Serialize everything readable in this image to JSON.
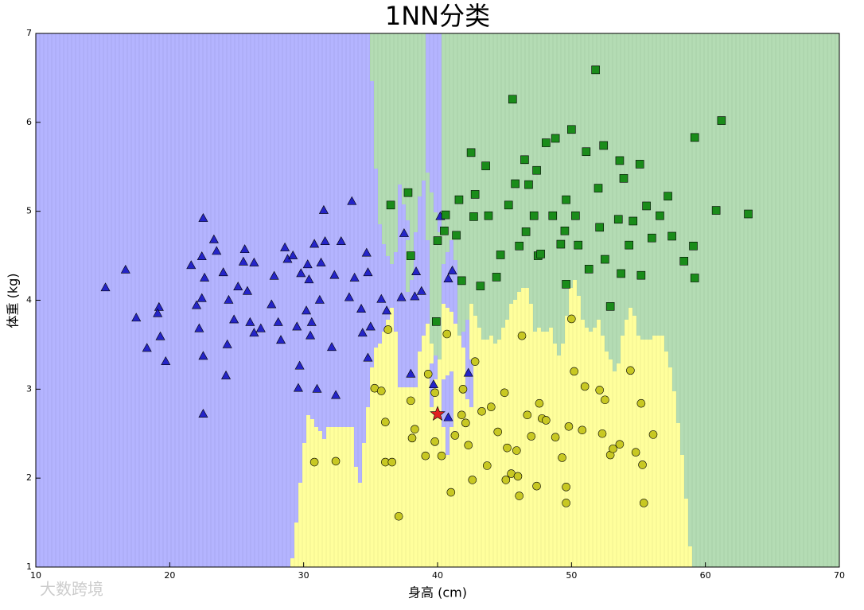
{
  "chart_data": {
    "type": "scatter",
    "title": "1NN分类",
    "xlabel": "身高 (cm)",
    "ylabel": "体重 (kg)",
    "watermark": "大数跨境",
    "xlim": [
      10,
      70
    ],
    "ylim": [
      1,
      7
    ],
    "xticks": [
      10,
      20,
      30,
      40,
      50,
      60,
      70
    ],
    "yticks": [
      1,
      2,
      3,
      4,
      5,
      6,
      7
    ],
    "series": [
      {
        "color": "#2424c8",
        "region_color": "#b4b4ff",
        "marker": "triangle",
        "x": [
          15.2,
          16.7,
          17.5,
          18.3,
          19.2,
          19.1,
          19.3,
          19.7,
          21.6,
          22.0,
          22.2,
          22.4,
          22.5,
          22.6,
          22.5,
          22.5,
          22.4,
          23.3,
          23.5,
          24.0,
          24.2,
          24.3,
          24.4,
          24.8,
          25.1,
          25.5,
          25.6,
          25.8,
          26.0,
          26.3,
          26.3,
          26.8,
          27.6,
          27.8,
          28.1,
          28.3,
          28.6,
          28.8,
          29.2,
          29.5,
          29.6,
          29.7,
          29.8,
          30.2,
          30.4,
          30.3,
          30.5,
          30.6,
          30.8,
          31.0,
          31.2,
          31.3,
          31.5,
          31.6,
          32.1,
          32.3,
          32.4,
          32.8,
          33.4,
          33.6,
          33.8,
          34.3,
          34.4,
          34.7,
          34.8,
          34.8,
          35.0,
          35.8,
          36.2,
          37.3,
          37.5,
          38.0,
          38.3,
          38.4,
          38.8,
          39.7,
          40.2,
          40.8,
          41.1,
          42.3,
          40.8
        ],
        "y": [
          4.14,
          4.34,
          3.8,
          3.46,
          3.92,
          3.85,
          3.59,
          3.31,
          4.39,
          3.94,
          3.68,
          4.49,
          4.92,
          4.25,
          2.72,
          3.37,
          4.02,
          4.68,
          4.55,
          4.31,
          3.15,
          3.5,
          4.0,
          3.78,
          4.15,
          4.43,
          4.57,
          4.1,
          3.75,
          4.42,
          3.63,
          3.68,
          3.95,
          4.27,
          3.75,
          3.55,
          4.59,
          4.46,
          4.5,
          3.7,
          3.01,
          3.26,
          4.3,
          3.88,
          4.23,
          4.4,
          3.6,
          3.75,
          4.63,
          3.0,
          4.0,
          4.42,
          5.01,
          4.66,
          3.47,
          4.28,
          2.93,
          4.66,
          4.03,
          5.11,
          4.25,
          3.9,
          3.63,
          4.53,
          4.31,
          3.35,
          3.7,
          4.01,
          3.88,
          4.03,
          4.75,
          3.17,
          4.04,
          4.32,
          4.1,
          3.05,
          4.94,
          4.24,
          4.33,
          3.18,
          2.68
        ]
      },
      {
        "color": "#1a8c1a",
        "region_color": "#b4dcb4",
        "marker": "square",
        "x": [
          36.5,
          37.8,
          38.0,
          39.9,
          40.0,
          40.5,
          40.6,
          41.4,
          41.6,
          41.8,
          42.5,
          42.7,
          42.8,
          43.2,
          43.6,
          43.8,
          44.4,
          44.7,
          45.3,
          45.6,
          45.8,
          46.1,
          46.5,
          46.6,
          46.8,
          47.2,
          47.4,
          47.5,
          47.7,
          48.1,
          48.6,
          48.8,
          49.2,
          49.5,
          49.6,
          49.6,
          50.0,
          50.3,
          50.5,
          51.1,
          51.3,
          51.8,
          52.0,
          52.1,
          52.4,
          52.5,
          52.9,
          53.5,
          53.6,
          53.7,
          53.9,
          54.3,
          54.6,
          55.1,
          55.2,
          55.6,
          56.0,
          56.6,
          57.2,
          57.5,
          58.4,
          59.2,
          59.1,
          59.2,
          60.8,
          61.2,
          63.2
        ],
        "y": [
          5.07,
          5.21,
          4.5,
          3.76,
          4.67,
          4.78,
          4.96,
          4.73,
          5.13,
          4.22,
          5.66,
          4.94,
          5.19,
          4.16,
          5.51,
          4.95,
          4.26,
          4.51,
          5.07,
          6.26,
          5.31,
          4.61,
          5.58,
          4.77,
          5.3,
          4.95,
          5.46,
          4.5,
          4.52,
          5.77,
          4.95,
          5.82,
          4.63,
          4.78,
          4.18,
          5.13,
          5.92,
          4.95,
          4.62,
          5.67,
          4.35,
          6.59,
          5.26,
          4.82,
          5.74,
          4.46,
          3.93,
          4.91,
          5.57,
          4.3,
          5.37,
          4.62,
          4.89,
          5.53,
          4.28,
          5.06,
          4.7,
          4.95,
          5.17,
          4.72,
          4.44,
          5.83,
          4.61,
          4.25,
          5.01,
          6.02,
          4.97
        ]
      },
      {
        "color": "#c8c822",
        "region_color": "#ffff9c",
        "marker": "circle",
        "x": [
          35.3,
          35.8,
          36.1,
          36.3,
          36.1,
          36.6,
          37.1,
          38.0,
          38.1,
          38.3,
          39.1,
          39.3,
          39.8,
          39.8,
          40.3,
          40.7,
          41.0,
          41.3,
          41.8,
          41.9,
          42.1,
          42.3,
          42.6,
          42.8,
          43.3,
          43.7,
          44.0,
          44.5,
          45.0,
          45.2,
          45.5,
          45.9,
          46.1,
          46.3,
          46.7,
          47.0,
          47.4,
          47.6,
          47.8,
          48.1,
          48.8,
          49.3,
          49.6,
          49.6,
          49.8,
          50.0,
          50.2,
          50.8,
          51.0,
          52.1,
          52.3,
          52.5,
          52.9,
          53.1,
          53.6,
          54.4,
          54.8,
          55.2,
          55.3,
          55.4,
          56.1,
          30.8,
          32.4,
          45.1,
          46.0
        ],
        "y": [
          3.01,
          2.98,
          2.63,
          3.67,
          2.18,
          2.18,
          1.57,
          2.87,
          2.45,
          2.55,
          2.25,
          3.17,
          2.96,
          2.41,
          2.25,
          3.62,
          1.84,
          2.48,
          2.71,
          3.0,
          2.62,
          2.37,
          1.98,
          3.31,
          2.75,
          2.14,
          2.8,
          2.52,
          2.96,
          2.34,
          2.05,
          2.31,
          1.8,
          3.6,
          2.71,
          2.47,
          1.91,
          2.84,
          2.67,
          2.65,
          2.46,
          2.23,
          1.9,
          1.72,
          2.58,
          3.79,
          3.2,
          2.54,
          3.03,
          2.99,
          2.5,
          2.88,
          2.26,
          2.33,
          2.38,
          3.21,
          2.29,
          2.84,
          2.15,
          1.72,
          2.49,
          2.18,
          2.19,
          1.98,
          2.02
        ]
      },
      {
        "color": "#e02020",
        "marker": "star",
        "x": [
          40.0
        ],
        "y": [
          2.72
        ]
      }
    ]
  }
}
